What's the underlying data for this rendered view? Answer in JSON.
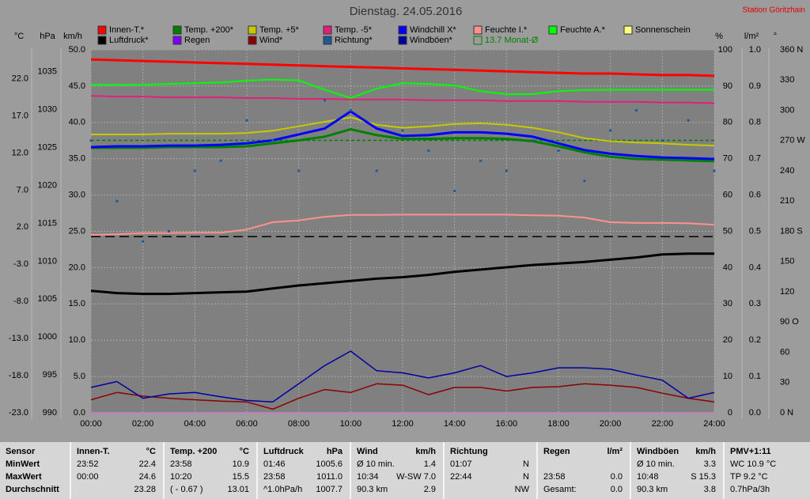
{
  "chart_data": {
    "type": "line",
    "title": "Dienstag. 24.05.2016",
    "station": "Station Göritzhain",
    "grid": true,
    "x": [
      0,
      1,
      2,
      3,
      4,
      5,
      6,
      7,
      8,
      9,
      10,
      11,
      12,
      13,
      14,
      15,
      16,
      17,
      18,
      19,
      20,
      21,
      22,
      23,
      24
    ],
    "xlim": [
      0,
      24
    ],
    "xticks": [
      {
        "value": 0,
        "label": "00:00"
      },
      {
        "value": 2,
        "label": "02:00"
      },
      {
        "value": 4,
        "label": "04:00"
      },
      {
        "value": 6,
        "label": "06:00"
      },
      {
        "value": 8,
        "label": "08:00"
      },
      {
        "value": 10,
        "label": "10:00"
      },
      {
        "value": 12,
        "label": "12:00"
      },
      {
        "value": 14,
        "label": "14:00"
      },
      {
        "value": 16,
        "label": "16:00"
      },
      {
        "value": 18,
        "label": "18:00"
      },
      {
        "value": 20,
        "label": "20:00"
      },
      {
        "value": 22,
        "label": "22:00"
      },
      {
        "value": 24,
        "label": "24:00"
      }
    ],
    "axes": [
      {
        "unit": "°C",
        "lim": [
          -23,
          25.9
        ],
        "ticks": [
          {
            "value": -23,
            "label": "-23.0"
          },
          {
            "value": -18,
            "label": "-18.0"
          },
          {
            "value": -13,
            "label": "-13.0"
          },
          {
            "value": -8,
            "label": "-8.0"
          },
          {
            "value": -3,
            "label": "-3.0"
          },
          {
            "value": 2,
            "label": "2.0"
          },
          {
            "value": 7,
            "label": "7.0"
          },
          {
            "value": 12,
            "label": "12.0"
          },
          {
            "value": 17,
            "label": "17.0"
          },
          {
            "value": 22,
            "label": "22.0"
          }
        ]
      },
      {
        "unit": "hPa",
        "lim": [
          990,
          1037.9
        ],
        "ticks": [
          990,
          995,
          1000,
          1005,
          1010,
          1015,
          1020,
          1025,
          1030,
          1035
        ]
      },
      {
        "unit": "km/h",
        "lim": [
          0,
          50
        ],
        "ticks": [
          {
            "value": 0,
            "label": "0.0"
          },
          {
            "value": 5,
            "label": "5.0"
          },
          {
            "value": 10,
            "label": "10.0"
          },
          {
            "value": 15,
            "label": "15.0"
          },
          {
            "value": 20,
            "label": "20.0"
          },
          {
            "value": 25,
            "label": "25.0"
          },
          {
            "value": 30,
            "label": "30.0"
          },
          {
            "value": 35,
            "label": "35.0"
          },
          {
            "value": 40,
            "label": "40.0"
          },
          {
            "value": 45,
            "label": "45.0"
          },
          {
            "value": 50,
            "label": "50.0"
          }
        ]
      },
      {
        "unit": "%",
        "lim": [
          0,
          100
        ],
        "ticks": [
          0,
          10,
          20,
          30,
          40,
          50,
          60,
          70,
          80,
          90,
          100
        ]
      },
      {
        "unit": "l/m²",
        "lim": [
          0,
          1
        ],
        "ticks": [
          {
            "value": 0,
            "label": "0.0"
          },
          {
            "value": 0.1,
            "label": "0.1"
          },
          {
            "value": 0.2,
            "label": "0.2"
          },
          {
            "value": 0.3,
            "label": "0.3"
          },
          {
            "value": 0.4,
            "label": "0.4"
          },
          {
            "value": 0.5,
            "label": "0.5"
          },
          {
            "value": 0.6,
            "label": "0.6"
          },
          {
            "value": 0.7,
            "label": "0.7"
          },
          {
            "value": 0.8,
            "label": "0.8"
          },
          {
            "value": 0.9,
            "label": "0.9"
          },
          {
            "value": 1,
            "label": "1.0"
          }
        ]
      },
      {
        "unit": "°",
        "lim": [
          0,
          360
        ],
        "ticks": [
          {
            "value": 0,
            "label": "0 N"
          },
          30,
          60,
          {
            "value": 90,
            "label": "90 O"
          },
          120,
          150,
          {
            "value": 180,
            "label": "180 S"
          },
          210,
          240,
          {
            "value": 270,
            "label": "270 W"
          },
          300,
          330,
          {
            "value": 360,
            "label": "360 N"
          }
        ]
      }
    ],
    "series": [
      {
        "name": "Innen-T.*",
        "color": "#ff0000",
        "axis": 0,
        "width": 3,
        "values": [
          24.6,
          24.5,
          24.4,
          24.3,
          24.2,
          24.1,
          24.0,
          23.9,
          23.8,
          23.7,
          23.6,
          23.5,
          23.4,
          23.3,
          23.2,
          23.1,
          23.0,
          22.9,
          22.8,
          22.7,
          22.7,
          22.6,
          22.5,
          22.5,
          22.4
        ]
      },
      {
        "name": "Temp. +200*",
        "color": "#008000",
        "axis": 0,
        "width": 3,
        "values": [
          12.7,
          12.7,
          12.7,
          12.8,
          12.8,
          12.8,
          12.9,
          13.3,
          13.7,
          14.2,
          15.2,
          14.4,
          13.9,
          13.9,
          14.0,
          14.0,
          13.9,
          13.6,
          12.9,
          12.1,
          11.5,
          11.2,
          11.1,
          11.0,
          10.9
        ]
      },
      {
        "name": "Temp. +5*",
        "color": "#c8c800",
        "axis": 0,
        "width": 2,
        "values": [
          14.5,
          14.5,
          14.5,
          14.6,
          14.6,
          14.6,
          14.7,
          15.0,
          15.6,
          16.2,
          16.8,
          15.8,
          15.4,
          15.6,
          15.9,
          16.0,
          15.8,
          15.4,
          14.8,
          14.0,
          13.6,
          13.4,
          13.3,
          13.1,
          13.0
        ]
      },
      {
        "name": "Temp. -5*",
        "color": "#e0207a",
        "axis": 0,
        "width": 2,
        "values": [
          19.7,
          19.6,
          19.6,
          19.5,
          19.5,
          19.5,
          19.4,
          19.4,
          19.3,
          19.3,
          19.2,
          19.2,
          19.2,
          19.1,
          19.1,
          19.1,
          19.0,
          19.0,
          19.0,
          18.9,
          18.9,
          18.9,
          18.8,
          18.8,
          18.7
        ]
      },
      {
        "name": "Windchill X*",
        "color": "#0000ff",
        "axis": 0,
        "width": 3,
        "values": [
          12.8,
          12.9,
          12.9,
          13.0,
          13.0,
          13.1,
          13.3,
          13.7,
          14.5,
          15.3,
          17.6,
          15.3,
          14.3,
          14.4,
          14.8,
          14.8,
          14.6,
          14.2,
          13.3,
          12.4,
          11.9,
          11.6,
          11.4,
          11.3,
          11.2
        ]
      },
      {
        "name": "Feuchte I.*",
        "color": "#ff9090",
        "axis": 3,
        "width": 2,
        "values": [
          49.0,
          49.2,
          49.5,
          49.5,
          49.6,
          49.6,
          50.5,
          52.5,
          53.0,
          54.0,
          54.5,
          54.5,
          54.6,
          54.6,
          54.6,
          54.6,
          54.6,
          54.4,
          54.3,
          53.8,
          52.5,
          52.3,
          52.3,
          52.2,
          51.8
        ]
      },
      {
        "name": "Feuchte A.*",
        "color": "#00ff00",
        "axis": 3,
        "width": 2,
        "values": [
          90.4,
          90.4,
          90.4,
          90.6,
          90.8,
          91.0,
          91.5,
          91.8,
          91.6,
          89.0,
          86.7,
          89.3,
          90.8,
          90.6,
          90.2,
          88.6,
          87.8,
          87.8,
          88.6,
          88.9,
          89.0,
          89.0,
          89.0,
          89.0,
          89.0
        ]
      },
      {
        "name": "Sonnenschein",
        "color": "#ffff80",
        "axis": 2,
        "width": 2,
        "values": [
          0,
          0,
          0,
          0,
          0,
          0,
          0,
          0,
          0,
          0,
          0,
          0,
          0,
          0,
          0,
          0,
          0,
          0,
          0,
          0,
          0,
          0,
          0,
          0,
          0
        ]
      },
      {
        "name": "Luftdruck*",
        "color": "#000000",
        "axis": 1,
        "width": 3,
        "values": [
          1006.1,
          1005.8,
          1005.7,
          1005.7,
          1005.8,
          1005.9,
          1006.0,
          1006.4,
          1006.8,
          1007.1,
          1007.4,
          1007.7,
          1007.9,
          1008.2,
          1008.6,
          1008.9,
          1009.2,
          1009.5,
          1009.7,
          1009.9,
          1010.2,
          1010.5,
          1010.9,
          1011.0,
          1011.0
        ]
      },
      {
        "name": "Regen",
        "color": "#8000ff",
        "axis": 4,
        "width": 1,
        "values": [
          0,
          0,
          0,
          0,
          0,
          0,
          0,
          0,
          0,
          0,
          0,
          0,
          0,
          0,
          0,
          0,
          0,
          0,
          0,
          0,
          0,
          0,
          0,
          0,
          0
        ]
      },
      {
        "name": "Wind*",
        "color": "#8b0000",
        "axis": 2,
        "width": 1.5,
        "values": [
          1.8,
          2.8,
          2.3,
          2.0,
          1.8,
          1.6,
          1.5,
          0.5,
          2.0,
          3.2,
          2.8,
          4.0,
          3.8,
          2.5,
          3.5,
          3.5,
          3.0,
          3.5,
          3.6,
          4.0,
          3.8,
          3.5,
          2.7,
          2.0,
          1.5
        ]
      },
      {
        "name": "Richtung*",
        "color": "#1e5a96",
        "axis": 5,
        "type": "scatter",
        "values": [
          270,
          210,
          170,
          180,
          240,
          250,
          290,
          270,
          240,
          310,
          300,
          240,
          280,
          260,
          220,
          250,
          240,
          270,
          260,
          230,
          280,
          300,
          270,
          290,
          240
        ]
      },
      {
        "name": "Windböen*",
        "color": "#0000a0",
        "axis": 2,
        "width": 1.5,
        "values": [
          3.5,
          4.3,
          2.0,
          2.6,
          2.8,
          2.2,
          1.7,
          1.5,
          4.0,
          6.5,
          8.5,
          5.8,
          5.5,
          4.8,
          5.5,
          6.5,
          5.0,
          5.5,
          6.2,
          6.2,
          6.0,
          5.2,
          4.5,
          2.0,
          2.8
        ]
      }
    ],
    "monthly_avg": {
      "label": "13.7 Monat-Ø",
      "value": 13.7,
      "axis": 0,
      "color": "#008000"
    },
    "reference_line": {
      "value": 1013.25,
      "axis": 1,
      "color": "#000000"
    }
  },
  "stats_table": {
    "columns": [
      {
        "header": {
          "left": "Sensor"
        },
        "rows": [
          {
            "left": "MinWert"
          },
          {
            "left": "MaxWert"
          },
          {
            "left": "Durchschnitt"
          }
        ]
      },
      {
        "header": {
          "left": "Innen-T.",
          "right": "°C"
        },
        "rows": [
          {
            "left": "23:52",
            "right": "22.4"
          },
          {
            "left": "00:00",
            "right": "24.6"
          },
          {
            "right": "23.28"
          }
        ]
      },
      {
        "header": {
          "left": "Temp. +200",
          "right": "°C"
        },
        "rows": [
          {
            "left": "23:58",
            "right": "10.9"
          },
          {
            "left": "10:20",
            "right": "15.5"
          },
          {
            "left": "( - 0.67 )",
            "right": "13.01"
          }
        ]
      },
      {
        "header": {
          "left": "Luftdruck",
          "right": "hPa"
        },
        "rows": [
          {
            "left": "01:46",
            "right": "1005.6"
          },
          {
            "left": "23:58",
            "right": "1011.0"
          },
          {
            "left": "^1.0hPa/h",
            "right": "1007.7"
          }
        ]
      },
      {
        "header": {
          "left": "Wind",
          "right": "km/h"
        },
        "rows": [
          {
            "left": "Ø 10 min.",
            "right": "1.4"
          },
          {
            "left": "10:34",
            "right": "W-SW 7.0"
          },
          {
            "left": "90.3 km",
            "right": "2.9"
          }
        ]
      },
      {
        "header": {
          "left": "Richtung"
        },
        "rows": [
          {
            "left": "01:07",
            "right": "N"
          },
          {
            "left": "22:44",
            "right": "N"
          },
          {
            "right": "NW"
          }
        ]
      },
      {
        "header": {
          "left": "Regen",
          "right": "l/m²"
        },
        "rows": [
          {},
          {
            "left": "23:58",
            "right": "0.0"
          },
          {
            "left": "Gesamt:",
            "right": "0.0"
          }
        ]
      },
      {
        "header": {
          "left": "Windböen",
          "right": "km/h"
        },
        "rows": [
          {
            "left": "Ø 10 min.",
            "right": "3.3"
          },
          {
            "left": "10:48",
            "right": "S 15.3"
          },
          {
            "left": "90.3 km",
            "right": "3.8"
          }
        ]
      },
      {
        "header": {
          "left": "PMV+1:11"
        },
        "rows": [
          {
            "left": "WC 10.9 °C"
          },
          {
            "left": "TP 9.2 °C"
          },
          {
            "left": "0.7hPa/3h"
          }
        ]
      }
    ]
  }
}
